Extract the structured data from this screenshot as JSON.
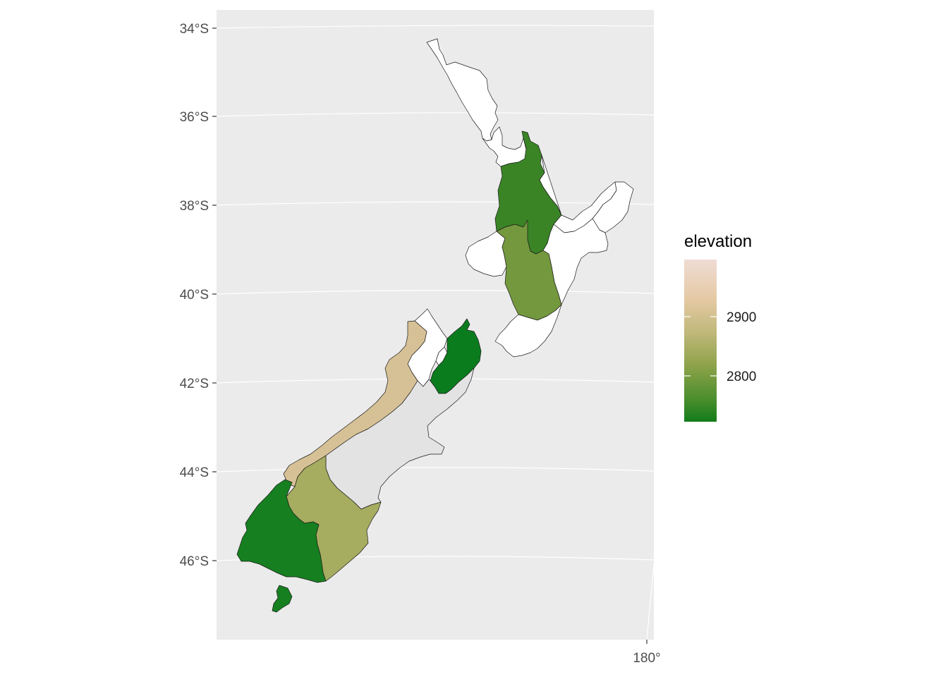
{
  "axes": {
    "y_ticks": [
      "34°S",
      "36°S",
      "38°S",
      "40°S",
      "42°S",
      "44°S",
      "46°S"
    ],
    "x_ticks": [
      "180°"
    ]
  },
  "legend": {
    "title": "elevation",
    "labels": [
      "2900",
      "2800"
    ],
    "gradient_colors": [
      "#f0dcd4",
      "#e4c9a3",
      "#c0b87a",
      "#8fa34a",
      "#4e8f2e",
      "#137c1a"
    ]
  },
  "colors": {
    "panel_background": "#ebebeb",
    "no_data": "#ffffff"
  },
  "regions": [
    {
      "name": "Northland",
      "fill": "#ffffff"
    },
    {
      "name": "Auckland",
      "fill": "#ffffff"
    },
    {
      "name": "Waikato",
      "fill": "#3a8426"
    },
    {
      "name": "Bay of Plenty",
      "fill": "#ffffff"
    },
    {
      "name": "Gisborne",
      "fill": "#ffffff"
    },
    {
      "name": "Hawke's Bay",
      "fill": "#ffffff"
    },
    {
      "name": "Taranaki",
      "fill": "#ffffff"
    },
    {
      "name": "Manawatu-Wanganui",
      "fill": "#73983e"
    },
    {
      "name": "Wellington",
      "fill": "#ffffff"
    },
    {
      "name": "Tasman",
      "fill": "#ffffff"
    },
    {
      "name": "Nelson",
      "fill": "#ffffff"
    },
    {
      "name": "Marlborough",
      "fill": "#0a7c1e"
    },
    {
      "name": "West Coast",
      "fill": "#d6c196"
    },
    {
      "name": "Canterbury",
      "fill": "#e3e3e3"
    },
    {
      "name": "Otago",
      "fill": "#a6ac60"
    },
    {
      "name": "Southland",
      "fill": "#167f20"
    }
  ]
}
